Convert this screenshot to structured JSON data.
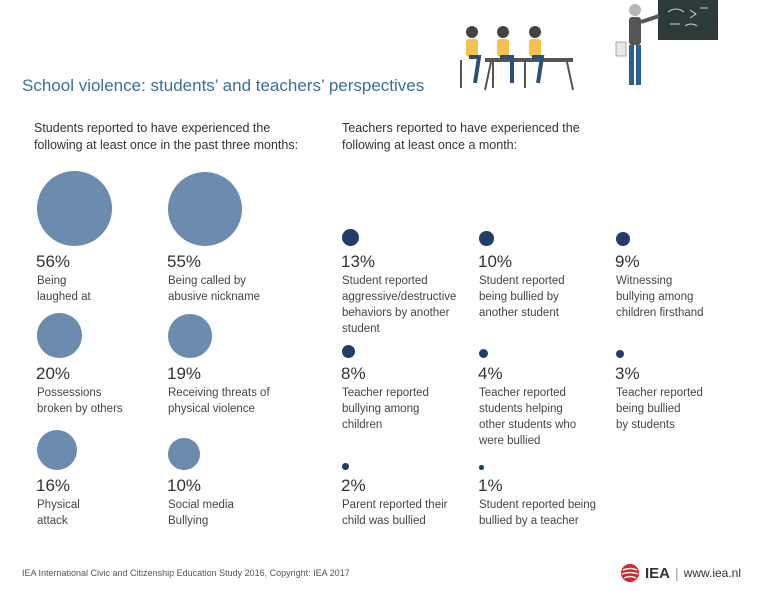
{
  "title": "School violence: students’ and teachers’ perspectives",
  "students_intro": "Students reported to have experienced the\nfollowing at least once in the past three months:",
  "teachers_intro": "Teachers reported to have experienced the\nfollowing at least once a month:",
  "footer": {
    "source": "IEA International Civic and Citizenship Education Study 2016, Copyright: IEA 2017",
    "brand": "IEA",
    "separator": "|",
    "url": "www.iea.nl"
  },
  "colors": {
    "students": "#6b8cae",
    "teachers": "#1f3f66",
    "title": "#3a6f9b",
    "brand_red": "#d2262c"
  },
  "chart_data": [
    {
      "type": "bubble",
      "group": "students",
      "categories": [
        "Being\nlaughed at",
        "Being called by\nabusive nickname",
        "Possessions\nbroken by others",
        "Receiving threats of\nphysical violence",
        "Physical\nattack",
        "Social media\nBullying"
      ],
      "values": [
        56,
        55,
        20,
        19,
        16,
        10
      ],
      "value_labels": [
        "56%",
        "55%",
        "20%",
        "19%",
        "16%",
        "10%"
      ]
    },
    {
      "type": "bubble",
      "group": "teachers",
      "categories": [
        "Student reported\naggressive/destructive\nbehaviors by another\nstudent",
        "Student reported\nbeing bullied by\nanother student",
        "Witnessing\nbullying among\nchildren firsthand",
        "Teacher reported\nbullying among\nchildren",
        "Teacher reported\nstudents helping\nother students who\nwere bullied",
        "Teacher reported\nbeing bullied\nby students",
        "Parent reported their\nchild was bullied",
        "Student reported being\nbullied by a teacher"
      ],
      "values": [
        13,
        10,
        9,
        8,
        4,
        3,
        2,
        1
      ],
      "value_labels": [
        "13%",
        "10%",
        "9%",
        "8%",
        "4%",
        "3%",
        "2%",
        "1%"
      ]
    }
  ]
}
